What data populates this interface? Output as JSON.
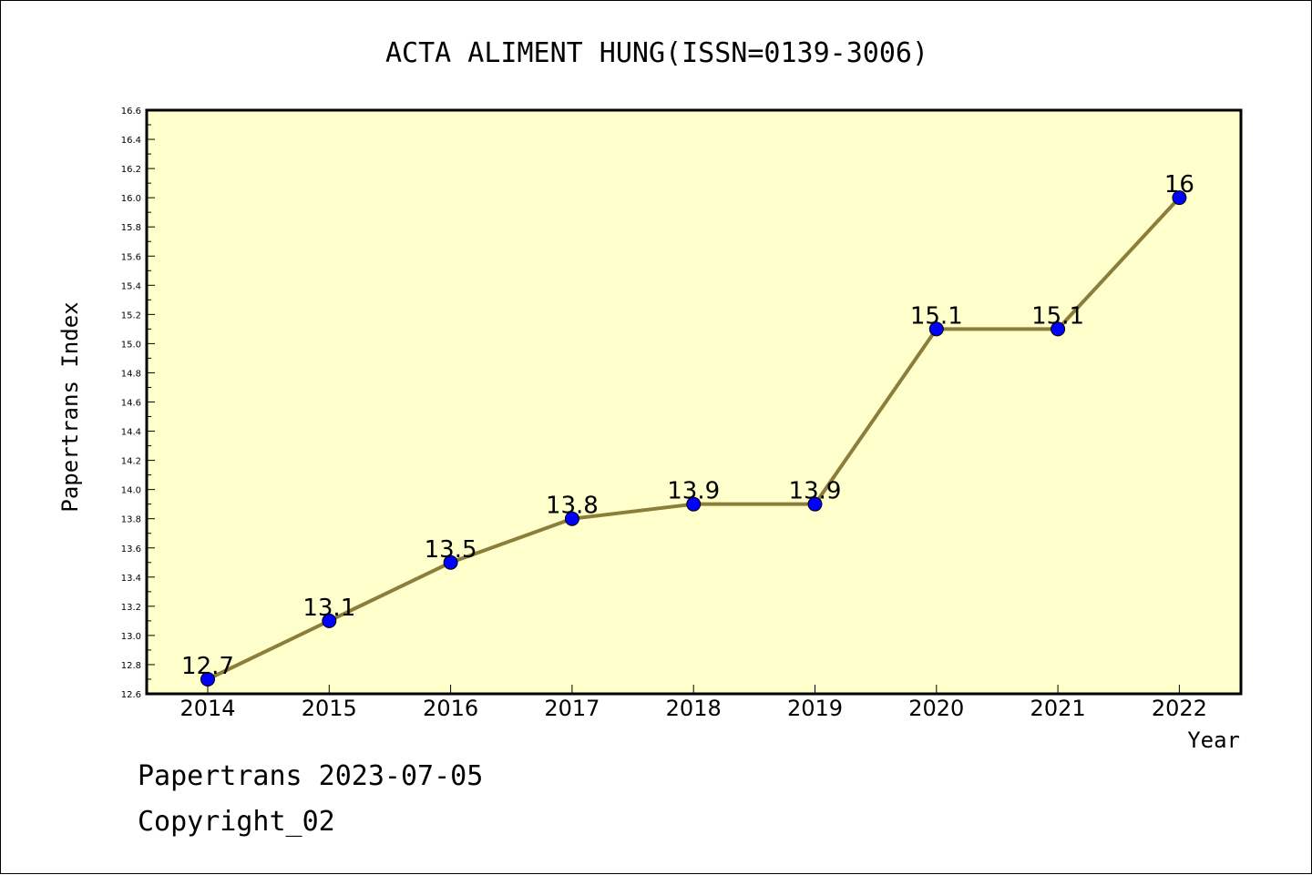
{
  "chart_data": {
    "type": "line",
    "title": "ACTA ALIMENT HUNG(ISSN=0139-3006)",
    "xlabel": "Year",
    "ylabel": "Papertrans Index",
    "categories": [
      "2014",
      "2015",
      "2016",
      "2017",
      "2018",
      "2019",
      "2020",
      "2021",
      "2022"
    ],
    "series": [
      {
        "values": [
          12.7,
          13.1,
          13.5,
          13.8,
          13.9,
          13.9,
          15.1,
          15.1,
          16
        ],
        "labels": [
          "12.7",
          "13.1",
          "13.5",
          "13.8",
          "13.9",
          "13.9",
          "15.1",
          "15.1",
          "16"
        ]
      }
    ],
    "ylim": [
      12.6,
      16.6
    ],
    "yticks": [
      "12.6",
      "12.8",
      "13.0",
      "13.2",
      "13.4",
      "13.6",
      "13.8",
      "14.0",
      "14.2",
      "14.4",
      "14.6",
      "14.8",
      "15.0",
      "15.2",
      "15.4",
      "15.6",
      "15.8",
      "16.0",
      "16.2",
      "16.4",
      "16.6"
    ],
    "grid": false,
    "legend": "none",
    "colors": {
      "plot_background": "#ffffcc",
      "line": "#8b7d3a",
      "marker": "#0000ff"
    }
  },
  "footer": {
    "line1": "Papertrans 2023-07-05",
    "line2": "Copyright_02"
  }
}
